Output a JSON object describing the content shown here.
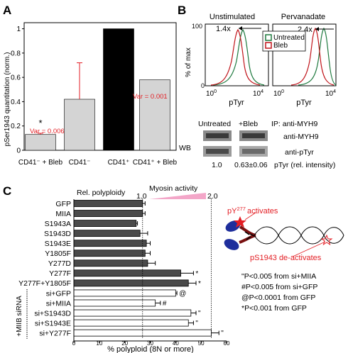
{
  "panels": {
    "a": "A",
    "b": "B",
    "c": "C"
  },
  "panel_a": {
    "ylabel": "pSer1943 quantitation (norm.)",
    "yticks": [
      "0",
      "0.2",
      "0.4",
      "0.6",
      "0.8",
      "1"
    ],
    "bar_labels": [
      "CD41⁻ + Bleb",
      "CD41⁻",
      "CD41⁺",
      "CD41⁺ + Bleb"
    ],
    "var1": "Var = 0.006",
    "var2": "Var = 0.001",
    "star": "*"
  },
  "panel_b": {
    "title_left": "Unstimulated",
    "title_right": "Pervanadate",
    "ylabel": "% of max",
    "y100": "100",
    "y0": "0",
    "xlabel": "pTyr",
    "fold_left": "1.4x",
    "fold_right": "2.4x",
    "legend": [
      "Untreated",
      "Bleb"
    ],
    "x10_0": "0",
    "x10_4": "4",
    "wb_untreated": "Untreated",
    "wb_bleb": "+Bleb",
    "ip": "IP: anti-MYH9",
    "wb": "WB",
    "anti_myh9": "anti-MYH9",
    "anti_ptyr": "anti-pTyr",
    "rel_1": "1.0",
    "rel_2": "0.63±0.06",
    "rel_label": "pTyr (rel. intensity)"
  },
  "panel_c": {
    "rel_poly": "Rel. polyploidy",
    "myosin": "Myosin activity",
    "v1": "1.0",
    "v2": "2.0",
    "xlabel": "% polyploid (8N or more)",
    "group_label": "+MIIB siRNA",
    "pY_prefix": "pY",
    "pY_sup": "277",
    "pY_suffix": "activates",
    "pS": "pS1943",
    "pS_suffix": "de-activates",
    "stats": [
      "\"P<0.005 from si+MIIA",
      "#P<0.005 from si+GFP",
      "@P<0.0001 from GFP",
      "*P<0.001 from GFP"
    ]
  },
  "colors": {
    "red": "#e31e24",
    "dark": "#4a4a4a",
    "light": "#d0d0d0",
    "green": "#1f7a3f",
    "pink": "#f3a6c8"
  },
  "chart_data": [
    {
      "type": "bar",
      "categories": [
        "CD41⁻ + Bleb",
        "CD41⁻",
        "CD41⁺",
        "CD41⁺ + Bleb"
      ],
      "values": [
        0.13,
        0.42,
        1.0,
        0.58
      ],
      "errors": [
        0.01,
        0.3,
        0,
        0
      ],
      "ylabel": "pSer1943 quantitation (norm.)",
      "ylim": [
        0,
        1.05
      ]
    },
    {
      "type": "bar",
      "orientation": "horizontal",
      "categories": [
        "GFP",
        "MIIA",
        "S1943A",
        "S1943D",
        "S1943E",
        "Y1805F",
        "Y277D",
        "Y277F",
        "Y277F+Y1805F",
        "si+GFP",
        "si+MIIA",
        "si+S1943D",
        "si+S1943E",
        "si+Y277F"
      ],
      "values": [
        27,
        27,
        24.5,
        26,
        28.5,
        28,
        29,
        42,
        45,
        40,
        32,
        46,
        45,
        54
      ],
      "errors": [
        1,
        1,
        0.5,
        3,
        1.5,
        2,
        3,
        5,
        3,
        0.5,
        2,
        2,
        2,
        3
      ],
      "marks": [
        "",
        "",
        "",
        "",
        "",
        "",
        "",
        "*",
        "*",
        "@",
        "#",
        "\"",
        "\"",
        "\""
      ],
      "xlabel": "% polyploid (8N or more)",
      "xlim": [
        0,
        60
      ],
      "xticks": [
        0,
        10,
        20,
        30,
        40,
        50,
        60
      ]
    }
  ]
}
